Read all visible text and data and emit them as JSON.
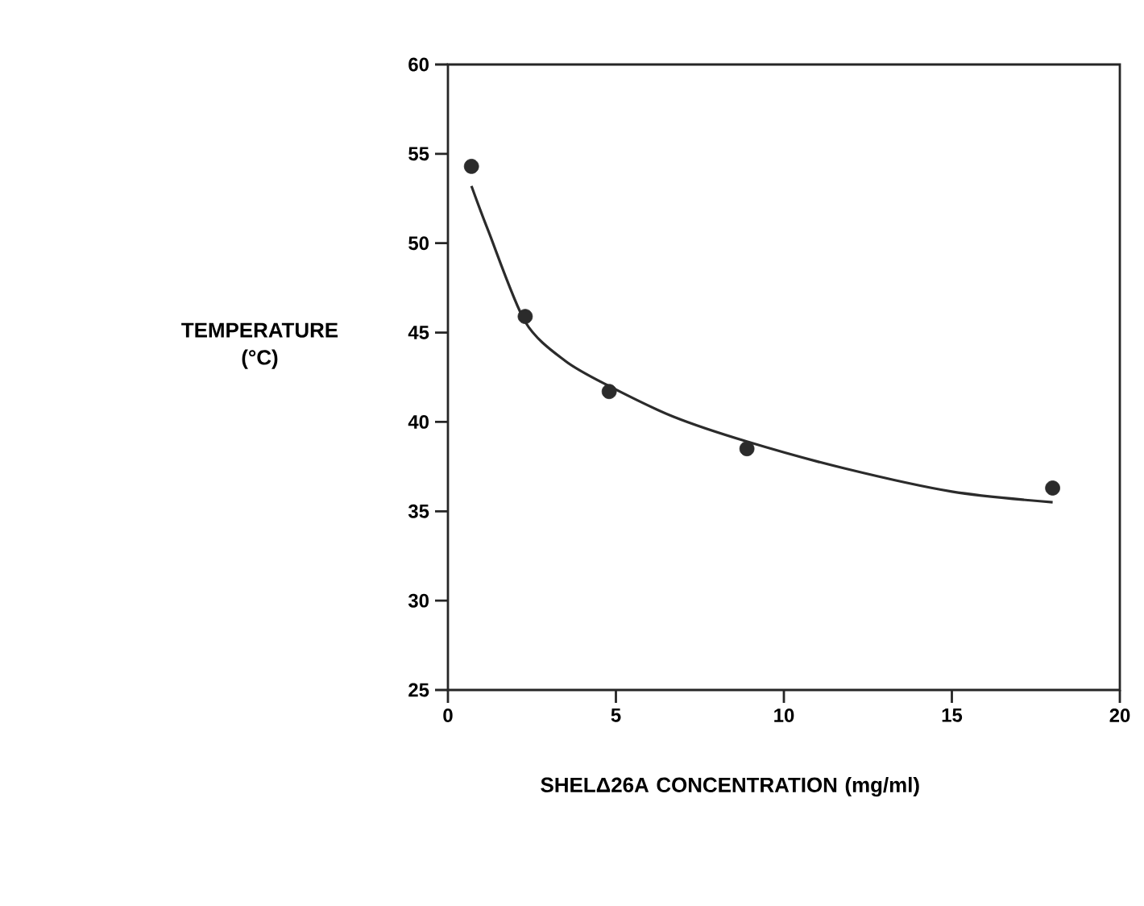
{
  "chart_data": {
    "type": "scatter",
    "xlabel": "SHELΔ26A  CONCENTRATION (mg/ml)",
    "ylabel": "TEMPERATURE (°C)",
    "xlim": [
      0,
      20
    ],
    "ylim": [
      25,
      60
    ],
    "xticks": [
      0,
      5,
      10,
      15,
      20
    ],
    "yticks": [
      25,
      30,
      35,
      40,
      45,
      50,
      55,
      60
    ],
    "marker": "circle",
    "grid": false,
    "series": [
      {
        "color": "#2b2b2b",
        "x": [
          0.7,
          2.3,
          4.8,
          8.9,
          18.0
        ],
        "values": [
          54.3,
          45.9,
          41.7,
          38.5,
          36.3
        ]
      },
      {
        "type": "line",
        "color": "#2b2b2b",
        "line_style": "solid",
        "marker": "none",
        "x": [
          0.7,
          1.2,
          2.3,
          3.5,
          4.8,
          6.7,
          8.9,
          11.8,
          15.0,
          18.0
        ],
        "values": [
          53.2,
          50.7,
          45.6,
          43.4,
          42.0,
          40.3,
          38.9,
          37.4,
          36.1,
          35.5
        ]
      }
    ]
  }
}
